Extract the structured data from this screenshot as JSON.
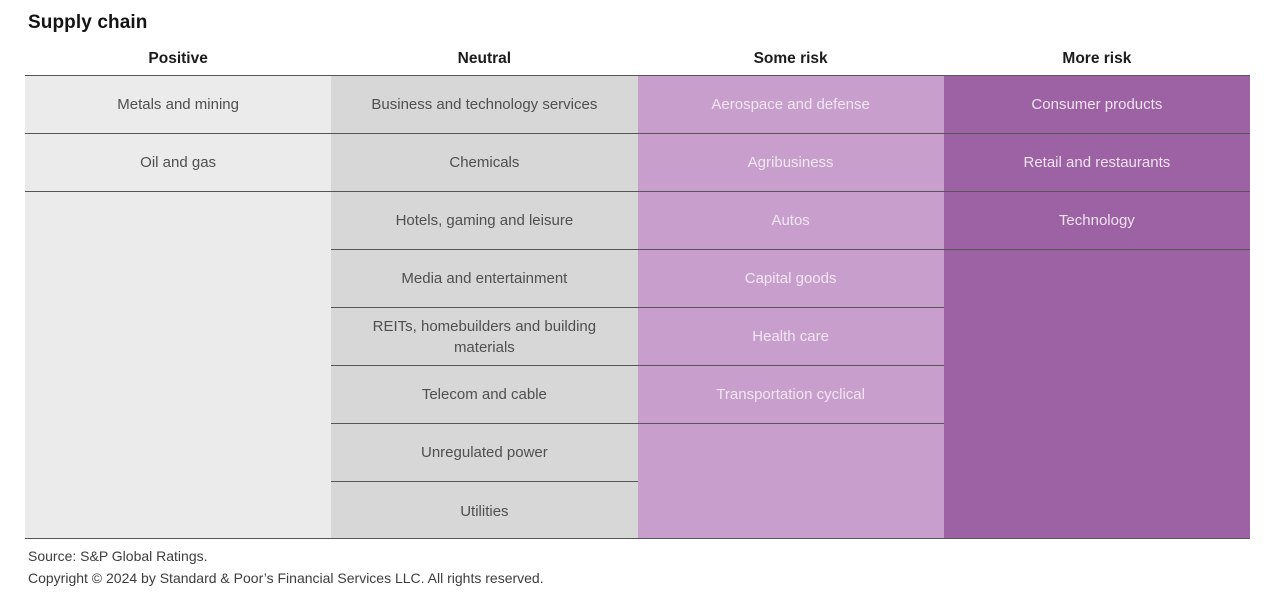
{
  "chart_data": {
    "type": "table",
    "title": "Supply chain",
    "columns": [
      {
        "header": "Positive",
        "bg": "#ebebeb",
        "text_color": "#4f4f4f",
        "items": [
          "Metals and mining",
          "Oil and gas"
        ]
      },
      {
        "header": "Neutral",
        "bg": "#d7d7d7",
        "text_color": "#4f4f4f",
        "items": [
          "Business and technology services",
          "Chemicals",
          "Hotels, gaming and leisure",
          "Media and entertainment",
          "REITs, homebuilders and building materials",
          "Telecom and cable",
          "Unregulated power",
          "Utilities"
        ]
      },
      {
        "header": "Some risk",
        "bg": "#c89fcc",
        "text_color": "#f0e6f1",
        "items": [
          "Aerospace and defense",
          "Agribusiness",
          "Autos",
          "Capital goods",
          "Health care",
          "Transportation cyclical"
        ]
      },
      {
        "header": "More risk",
        "bg": "#9d62a4",
        "text_color": "#eee2ef",
        "items": [
          "Consumer products",
          "Retail and restaurants",
          "Technology"
        ]
      }
    ],
    "layout_hints": {
      "grid": "row dividers only under filled cells",
      "legend_position": "none"
    }
  },
  "colors": {
    "border": "#57555a",
    "title_text": "#141414",
    "header_text": "#1c1c1c",
    "footer_text": "#3d3d3d",
    "page_bg": "#ffffff"
  },
  "footer": {
    "source": "Source: S&P Global Ratings.",
    "copyright": "Copyright © 2024 by Standard & Poor’s Financial Services LLC. All rights reserved."
  }
}
